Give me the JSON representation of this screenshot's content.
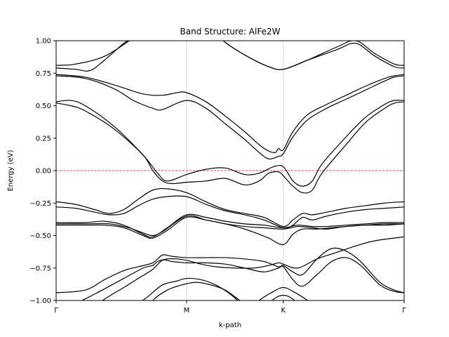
{
  "chart_data": {
    "type": "line",
    "title": "Band Structure: AlFe2W",
    "xlabel": "k-path",
    "ylabel": "Energy (eV)",
    "xlim": [
      0,
      3.6
    ],
    "ylim": [
      -1.0,
      1.0
    ],
    "x_ticks": [
      {
        "label": "Γ",
        "x": 0
      },
      {
        "label": "M",
        "x": 1.35
      },
      {
        "label": "K",
        "x": 2.35
      },
      {
        "label": "Γ",
        "x": 3.6
      }
    ],
    "y_ticks": [
      {
        "label": "−1.00",
        "y": -1.0
      },
      {
        "label": "−0.75",
        "y": -0.75
      },
      {
        "label": "−0.50",
        "y": -0.5
      },
      {
        "label": "−0.25",
        "y": -0.25
      },
      {
        "label": "0.00",
        "y": 0.0
      },
      {
        "label": "0.25",
        "y": 0.25
      },
      {
        "label": "0.50",
        "y": 0.5
      },
      {
        "label": "0.75",
        "y": 0.75
      },
      {
        "label": "1.00",
        "y": 1.0
      }
    ],
    "fermi_level": 0.0,
    "vertical_gridlines_at_ticks": true,
    "line_color": "#000000",
    "fermi_color": "#ff0000",
    "grid_color": "#d9d9d9",
    "series": [
      {
        "x": [
          0,
          0.2,
          0.5,
          0.8,
          1.0,
          1.2,
          1.35,
          1.6,
          1.8,
          2.0,
          2.2,
          2.35,
          2.6,
          2.9,
          3.1,
          3.3,
          3.5,
          3.6
        ],
        "values": [
          0.81,
          0.82,
          0.88,
          1.02,
          1.1,
          1.14,
          1.15,
          1.07,
          0.96,
          0.87,
          0.8,
          0.78,
          0.85,
          0.95,
          1.0,
          0.9,
          0.82,
          0.81
        ]
      },
      {
        "x": [
          0,
          0.2,
          0.35,
          0.5,
          0.7,
          0.8,
          1.0,
          1.2,
          1.35,
          1.6,
          1.8,
          2.0,
          2.2,
          2.35,
          2.6,
          2.9,
          3.1,
          3.3,
          3.5,
          3.6
        ],
        "values": [
          0.79,
          0.78,
          0.77,
          0.85,
          0.98,
          1.02,
          1.08,
          1.12,
          1.15,
          1.07,
          0.96,
          0.87,
          0.8,
          0.78,
          0.85,
          0.93,
          0.98,
          0.88,
          0.8,
          0.79
        ]
      },
      {
        "x": [
          0,
          0.3,
          0.6,
          0.9,
          1.1,
          1.25,
          1.35,
          1.55,
          1.75,
          1.95,
          2.1,
          2.2,
          2.27,
          2.3,
          2.35,
          2.45,
          2.6,
          2.8,
          3.0,
          3.2,
          3.4,
          3.5,
          3.6
        ],
        "values": [
          0.74,
          0.72,
          0.66,
          0.59,
          0.58,
          0.6,
          0.6,
          0.53,
          0.42,
          0.3,
          0.2,
          0.15,
          0.14,
          0.17,
          0.16,
          0.3,
          0.43,
          0.51,
          0.58,
          0.65,
          0.71,
          0.73,
          0.74
        ]
      },
      {
        "x": [
          0,
          0.3,
          0.6,
          0.8,
          1.0,
          1.1,
          1.35,
          1.55,
          1.75,
          1.95,
          2.1,
          2.2,
          2.3,
          2.35,
          2.45,
          2.6,
          2.8,
          3.0,
          3.2,
          3.4,
          3.5,
          3.6
        ],
        "values": [
          0.73,
          0.71,
          0.63,
          0.54,
          0.48,
          0.47,
          0.54,
          0.48,
          0.36,
          0.24,
          0.14,
          0.09,
          0.11,
          0.13,
          0.26,
          0.39,
          0.48,
          0.55,
          0.62,
          0.69,
          0.72,
          0.73
        ]
      },
      {
        "x": [
          0,
          0.15,
          0.3,
          0.6,
          0.9,
          1.05,
          1.15,
          1.35,
          1.55,
          1.75,
          1.95,
          2.1,
          2.25,
          2.35,
          2.45,
          2.55,
          2.65,
          2.75,
          3.0,
          3.2,
          3.4,
          3.5,
          3.6
        ],
        "values": [
          0.53,
          0.54,
          0.5,
          0.34,
          0.12,
          -0.02,
          -0.08,
          -0.03,
          0.01,
          0.02,
          -0.03,
          -0.02,
          0.03,
          0.03,
          -0.08,
          -0.12,
          -0.08,
          0.05,
          0.26,
          0.41,
          0.51,
          0.54,
          0.54
        ]
      },
      {
        "x": [
          0,
          0.15,
          0.3,
          0.6,
          0.9,
          1.0,
          1.1,
          1.2,
          1.35,
          1.55,
          1.75,
          1.95,
          2.1,
          2.2,
          2.3,
          2.35,
          2.45,
          2.55,
          2.65,
          2.75,
          3.0,
          3.2,
          3.4,
          3.5,
          3.6
        ],
        "values": [
          0.52,
          0.5,
          0.46,
          0.32,
          0.12,
          0.0,
          -0.08,
          -0.1,
          -0.09,
          -0.08,
          -0.06,
          -0.11,
          -0.08,
          -0.02,
          -0.01,
          -0.04,
          -0.12,
          -0.17,
          -0.15,
          -0.02,
          0.2,
          0.37,
          0.48,
          0.52,
          0.53
        ]
      },
      {
        "x": [
          0,
          0.2,
          0.4,
          0.55,
          0.7,
          0.85,
          1.0,
          1.15,
          1.35,
          1.55,
          1.75,
          1.95,
          2.15,
          2.35,
          2.45,
          2.55,
          2.65,
          2.8,
          3.0,
          3.2,
          3.4,
          3.6
        ],
        "values": [
          -0.24,
          -0.26,
          -0.3,
          -0.33,
          -0.3,
          -0.22,
          -0.15,
          -0.14,
          -0.17,
          -0.24,
          -0.3,
          -0.33,
          -0.36,
          -0.43,
          -0.38,
          -0.33,
          -0.34,
          -0.32,
          -0.29,
          -0.27,
          -0.25,
          -0.24
        ]
      },
      {
        "x": [
          0,
          0.2,
          0.4,
          0.55,
          0.7,
          0.85,
          1.0,
          1.15,
          1.35,
          1.55,
          1.75,
          1.95,
          2.15,
          2.35,
          2.45,
          2.55,
          2.65,
          2.8,
          3.0,
          3.2,
          3.4,
          3.6
        ],
        "values": [
          -0.28,
          -0.29,
          -0.32,
          -0.34,
          -0.33,
          -0.27,
          -0.22,
          -0.2,
          -0.2,
          -0.26,
          -0.31,
          -0.34,
          -0.38,
          -0.44,
          -0.42,
          -0.36,
          -0.38,
          -0.35,
          -0.32,
          -0.3,
          -0.29,
          -0.28
        ]
      },
      {
        "x": [
          0,
          0.3,
          0.5,
          0.7,
          0.9,
          1.0,
          1.15,
          1.35,
          1.55,
          1.75,
          1.95,
          2.15,
          2.35,
          2.5,
          2.65,
          2.8,
          3.0,
          3.2,
          3.4,
          3.6
        ],
        "values": [
          -0.4,
          -0.4,
          -0.39,
          -0.42,
          -0.49,
          -0.51,
          -0.44,
          -0.34,
          -0.36,
          -0.39,
          -0.41,
          -0.42,
          -0.44,
          -0.42,
          -0.43,
          -0.43,
          -0.42,
          -0.41,
          -0.4,
          -0.4
        ]
      },
      {
        "x": [
          0,
          0.3,
          0.5,
          0.7,
          0.9,
          1.0,
          1.15,
          1.35,
          1.55,
          1.75,
          1.95,
          2.15,
          2.35,
          2.5,
          2.65,
          2.8,
          3.0,
          3.2,
          3.4,
          3.6
        ],
        "values": [
          -0.42,
          -0.42,
          -0.42,
          -0.44,
          -0.5,
          -0.52,
          -0.46,
          -0.36,
          -0.38,
          -0.41,
          -0.43,
          -0.44,
          -0.45,
          -0.43,
          -0.44,
          -0.45,
          -0.43,
          -0.42,
          -0.41,
          -0.41
        ]
      },
      {
        "x": [
          0,
          0.3,
          0.55,
          0.75,
          0.9,
          1.0,
          1.1,
          1.35,
          1.55,
          1.75,
          1.95,
          2.1,
          2.2,
          2.35,
          2.45,
          2.55,
          2.7,
          2.85,
          3.0,
          3.2,
          3.4,
          3.6
        ],
        "values": [
          -0.41,
          -0.41,
          -0.41,
          -0.44,
          -0.48,
          -0.5,
          -0.47,
          -0.35,
          -0.38,
          -0.41,
          -0.45,
          -0.49,
          -0.52,
          -0.57,
          -0.49,
          -0.45,
          -0.45,
          -0.44,
          -0.43,
          -0.42,
          -0.42,
          -0.41
        ]
      },
      {
        "x": [
          0,
          0.4,
          0.7,
          0.9,
          1.0,
          1.05,
          1.15,
          1.25,
          1.35,
          1.5,
          1.65,
          1.85,
          2.05,
          2.2,
          2.3,
          2.35,
          2.5,
          2.7,
          2.9,
          3.1,
          3.3,
          3.6
        ],
        "values": [
          -1.1,
          -0.95,
          -0.83,
          -0.75,
          -0.73,
          -0.7,
          -0.68,
          -0.68,
          -0.69,
          -0.72,
          -0.74,
          -0.75,
          -0.75,
          -0.73,
          -0.71,
          -0.72,
          -0.75,
          -0.68,
          -0.63,
          -0.58,
          -0.54,
          -0.51
        ]
      },
      {
        "x": [
          0,
          0.3,
          0.5,
          0.7,
          0.85,
          1.0,
          1.1,
          1.2,
          1.35,
          1.55,
          1.75,
          1.95,
          2.15,
          2.3,
          2.35,
          2.45,
          2.55,
          2.7,
          2.85,
          3.0,
          3.15,
          3.35,
          3.5,
          3.6
        ],
        "values": [
          -0.94,
          -0.92,
          -0.84,
          -0.77,
          -0.74,
          -0.71,
          -0.65,
          -0.66,
          -0.67,
          -0.67,
          -0.67,
          -0.68,
          -0.7,
          -0.74,
          -0.73,
          -0.78,
          -0.8,
          -0.68,
          -0.6,
          -0.62,
          -0.7,
          -0.86,
          -0.92,
          -0.94
        ]
      },
      {
        "x": [
          0,
          0.3,
          0.5,
          0.7,
          0.85,
          1.0,
          1.1,
          1.2,
          1.35,
          1.55,
          1.75,
          1.95,
          2.15,
          2.3,
          2.35,
          2.45,
          2.55,
          2.7,
          2.85,
          3.0,
          3.15,
          3.35,
          3.5,
          3.6
        ],
        "values": [
          -1.2,
          -1.1,
          -0.99,
          -0.9,
          -0.83,
          -0.76,
          -0.69,
          -0.7,
          -0.71,
          -0.71,
          -0.72,
          -0.75,
          -0.78,
          -0.75,
          -0.74,
          -0.84,
          -0.89,
          -0.8,
          -0.7,
          -0.67,
          -0.73,
          -0.88,
          -0.93,
          -0.94
        ]
      },
      {
        "x": [
          0.8,
          0.95,
          1.1,
          1.25,
          1.35,
          1.5,
          1.65,
          1.8,
          1.95
        ],
        "values": [
          -1.05,
          -0.97,
          -0.88,
          -0.85,
          -0.83,
          -0.84,
          -0.88,
          -0.95,
          -1.05
        ]
      },
      {
        "x": [
          0.85,
          1.0,
          1.15,
          1.3,
          1.45,
          1.6,
          1.75,
          1.9,
          2.05,
          2.15
        ],
        "values": [
          -1.15,
          -1.0,
          -0.92,
          -0.88,
          -0.86,
          -0.88,
          -0.92,
          -1.0,
          -1.08,
          -1.15
        ]
      },
      {
        "x": [
          1.95,
          2.1,
          2.25,
          2.35,
          2.45,
          2.6,
          2.75
        ],
        "values": [
          -1.1,
          -1.0,
          -0.93,
          -0.9,
          -0.93,
          -1.0,
          -1.1
        ]
      },
      {
        "x": [
          2.1,
          2.25,
          2.35,
          2.45,
          2.6
        ],
        "values": [
          -1.1,
          -0.99,
          -0.96,
          -0.99,
          -1.1
        ]
      }
    ]
  }
}
